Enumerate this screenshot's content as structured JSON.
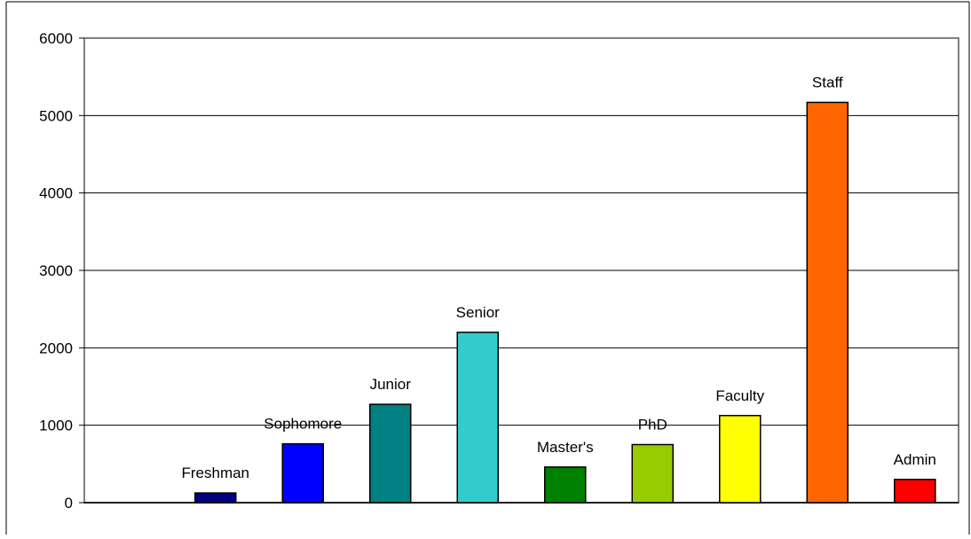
{
  "chart_data": {
    "type": "bar",
    "categories": [
      "Freshman",
      "Sophomore",
      "Junior",
      "Senior",
      "Master's",
      "PhD",
      "Faculty",
      "Staff",
      "Admin"
    ],
    "values": [
      125,
      760,
      1270,
      2200,
      460,
      750,
      1125,
      5170,
      300
    ],
    "colors": [
      "#000080",
      "#0000FF",
      "#008080",
      "#33CCCC",
      "#008000",
      "#99CC00",
      "#FFFF00",
      "#FF6600",
      "#FF0000"
    ],
    "ylim": [
      0,
      6000
    ],
    "yticks": [
      "0",
      "1000",
      "2000",
      "3000",
      "4000",
      "5000",
      "6000"
    ],
    "grid": true,
    "legend": "none",
    "data_labels": "category names above bars"
  }
}
